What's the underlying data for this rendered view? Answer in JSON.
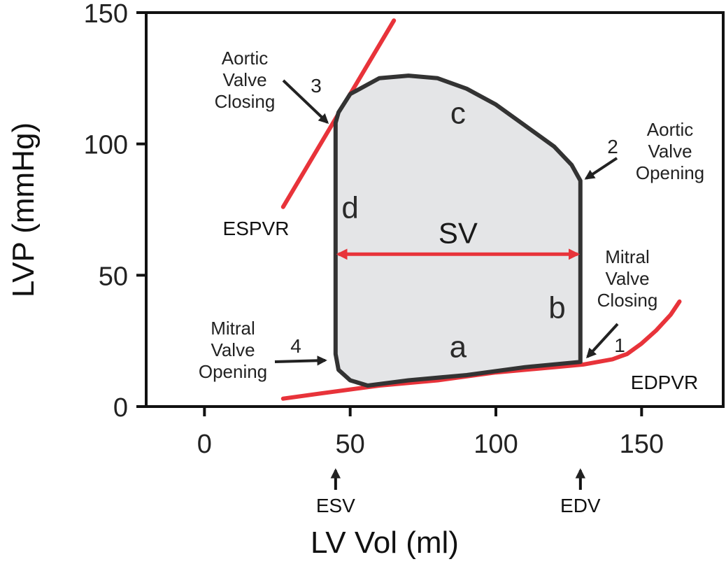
{
  "chart_data": {
    "type": "line",
    "xlabel": "LV Vol (ml)",
    "ylabel": "LVP (mmHg)",
    "xlim": [
      -20,
      178
    ],
    "ylim": [
      0,
      150
    ],
    "x_ticks": [
      0,
      50,
      100,
      150
    ],
    "y_ticks": [
      0,
      50,
      100,
      150
    ],
    "pv_loop": {
      "x": [
        129,
        129,
        126,
        120,
        110,
        100,
        90,
        80,
        70,
        60,
        50,
        46,
        45,
        45,
        46,
        50,
        56,
        70,
        90,
        110,
        129
      ],
      "y": [
        17,
        86,
        92,
        99,
        107,
        115,
        121,
        125,
        126,
        125,
        119,
        112,
        108,
        20,
        14,
        10,
        8,
        10,
        12,
        15,
        17
      ]
    },
    "espvr": {
      "x": [
        27,
        65
      ],
      "y": [
        76,
        147
      ]
    },
    "edpvr": {
      "x": [
        27,
        40,
        60,
        80,
        100,
        120,
        130,
        140,
        145,
        150,
        155,
        160,
        163
      ],
      "y": [
        3,
        5,
        8,
        10,
        13,
        15,
        16,
        18,
        20,
        24,
        29,
        35,
        40
      ]
    },
    "stroke_volume": {
      "from": 45,
      "to": 129,
      "y": 58,
      "label": "SV"
    },
    "series_labels": {
      "espvr": "ESPVR",
      "edpvr": "EDPVR"
    },
    "phases": [
      {
        "label": "a",
        "x": 87,
        "y": 23
      },
      {
        "label": "b",
        "x": 121,
        "y": 38
      },
      {
        "label": "c",
        "x": 87,
        "y": 112
      },
      {
        "label": "d",
        "x": 50,
        "y": 76
      }
    ],
    "events": [
      {
        "number": "1",
        "text": [
          "Mitral",
          "Valve",
          "Closing"
        ],
        "x": 129,
        "y": 17
      },
      {
        "number": "2",
        "text": [
          "Aortic",
          "Valve",
          "Opening"
        ],
        "x": 129,
        "y": 86
      },
      {
        "number": "3",
        "text": [
          "Aortic",
          "Valve",
          "Closing"
        ],
        "x": 45,
        "y": 108
      },
      {
        "number": "4",
        "text": [
          "Mitral",
          "Valve",
          "Opening"
        ],
        "x": 45,
        "y": 20
      }
    ],
    "volume_markers": [
      {
        "label": "ESV",
        "x": 45
      },
      {
        "label": "EDV",
        "x": 129
      }
    ],
    "colors": {
      "loop_fill": "#e4e5e7",
      "loop_stroke": "#333333",
      "relations": "#e8333a",
      "axis": "#111111"
    },
    "grid": false
  }
}
